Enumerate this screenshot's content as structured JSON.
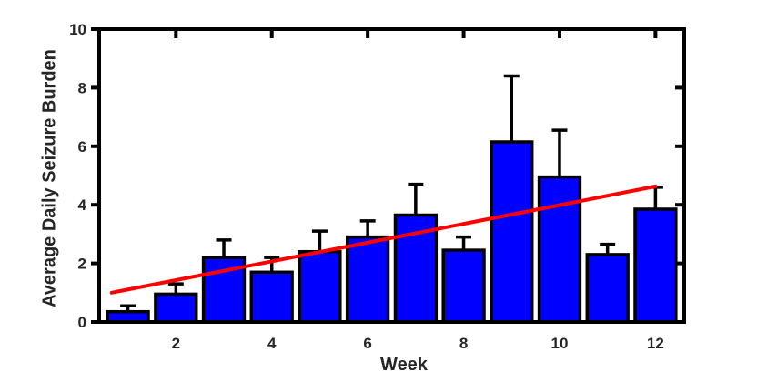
{
  "figure": {
    "background": "#ffffff",
    "xlabel": "Week",
    "ylabel": "Average Daily Seizure Burden"
  },
  "chart_data": {
    "type": "bar",
    "title": "",
    "xlabel": "Week",
    "ylabel": "Average Daily Seizure Burden",
    "categories": [
      1,
      2,
      3,
      4,
      5,
      6,
      7,
      8,
      9,
      10,
      11,
      12
    ],
    "values": [
      0.35,
      0.95,
      2.2,
      1.7,
      2.4,
      2.9,
      3.65,
      2.45,
      6.15,
      4.95,
      2.3,
      3.85
    ],
    "error_upper": [
      0.2,
      0.35,
      0.6,
      0.5,
      0.7,
      0.55,
      1.05,
      0.45,
      2.25,
      1.6,
      0.35,
      0.75
    ],
    "x_ticks": [
      2,
      4,
      6,
      8,
      10,
      12
    ],
    "y_ticks": [
      0,
      2,
      4,
      6,
      8,
      10
    ],
    "xlim": [
      0.4,
      12.6
    ],
    "ylim": [
      0,
      10
    ],
    "bar_width_units": 0.85,
    "grid": false,
    "legend": null,
    "box": true,
    "trend_line": {
      "x1": 0.66,
      "y1": 1.0,
      "x2": 12.0,
      "y2": 4.63,
      "color": "#ff0000"
    },
    "colors": {
      "bar_fill": "#0000ff",
      "bar_edge": "#000000",
      "error_bar": "#000000",
      "axis": "#000000",
      "tick_label": "#262626",
      "axis_label": "#262626"
    }
  }
}
